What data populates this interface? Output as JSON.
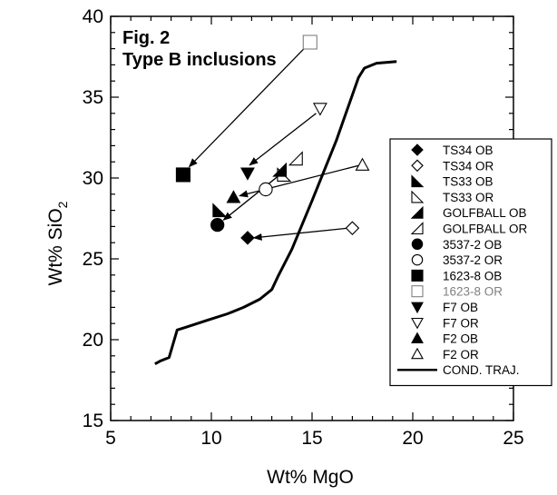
{
  "chart_data": {
    "type": "scatter",
    "title": "Fig. 2",
    "subtitle": "Type B inclusions",
    "xlabel": "Wt% MgO",
    "ylabel_main": "Wt% SiO",
    "ylabel_sub": "2",
    "xlim": [
      5,
      25
    ],
    "ylim": [
      15,
      40
    ],
    "xticks": [
      5,
      10,
      15,
      20,
      25
    ],
    "yticks": [
      15,
      20,
      25,
      30,
      35,
      40
    ],
    "grid": false,
    "legend_position": "right",
    "series": [
      {
        "name": "TS34 OB",
        "marker": "diamond",
        "filled": true,
        "color": "#000000",
        "points": [
          [
            11.8,
            26.3
          ]
        ]
      },
      {
        "name": "TS34 OR",
        "marker": "diamond",
        "filled": false,
        "color": "#000000",
        "points": [
          [
            17.0,
            26.9
          ]
        ]
      },
      {
        "name": "TS33 OB",
        "marker": "right-triangle",
        "filled": true,
        "color": "#000000",
        "points": [
          [
            10.4,
            28.0
          ]
        ]
      },
      {
        "name": "TS33 OR",
        "marker": "right-triangle",
        "filled": false,
        "color": "#000000",
        "points": [
          [
            13.6,
            30.2
          ]
        ]
      },
      {
        "name": "GOLFBALL OB",
        "marker": "left-triangle",
        "filled": true,
        "color": "#000000",
        "points": [
          [
            13.4,
            30.5
          ]
        ]
      },
      {
        "name": "GOLFBALL OR",
        "marker": "left-triangle",
        "filled": false,
        "color": "#000000",
        "points": [
          [
            14.2,
            31.2
          ]
        ]
      },
      {
        "name": "3537-2 OB",
        "marker": "circle",
        "filled": true,
        "color": "#000000",
        "points": [
          [
            10.3,
            27.1
          ]
        ]
      },
      {
        "name": "3537-2 OR",
        "marker": "circle",
        "filled": false,
        "color": "#000000",
        "points": [
          [
            12.7,
            29.3
          ]
        ]
      },
      {
        "name": "1623-8 OB",
        "marker": "square",
        "filled": true,
        "color": "#000000",
        "points": [
          [
            8.6,
            30.2
          ]
        ]
      },
      {
        "name": "1623-8 OR",
        "marker": "square",
        "filled": false,
        "color": "#808080",
        "points": [
          [
            14.9,
            38.4
          ]
        ]
      },
      {
        "name": "F7 OB",
        "marker": "triangle-down",
        "filled": true,
        "color": "#000000",
        "points": [
          [
            11.8,
            30.3
          ]
        ]
      },
      {
        "name": "F7 OR",
        "marker": "triangle-down",
        "filled": false,
        "color": "#000000",
        "points": [
          [
            15.4,
            34.3
          ]
        ]
      },
      {
        "name": "F2 OB",
        "marker": "triangle-up",
        "filled": true,
        "color": "#000000",
        "points": [
          [
            11.1,
            28.8
          ]
        ]
      },
      {
        "name": "F2 OR",
        "marker": "triangle-up",
        "filled": false,
        "color": "#000000",
        "points": [
          [
            17.5,
            30.8
          ]
        ]
      },
      {
        "name": "COND. TRAJ.",
        "marker": "line",
        "filled": false,
        "color": "#000000",
        "points": [
          [
            7.2,
            18.5
          ],
          [
            7.5,
            18.7
          ],
          [
            7.9,
            18.9
          ],
          [
            8.3,
            20.6
          ],
          [
            8.8,
            20.8
          ],
          [
            9.8,
            21.2
          ],
          [
            10.8,
            21.6
          ],
          [
            11.6,
            22.0
          ],
          [
            12.4,
            22.5
          ],
          [
            13.0,
            23.1
          ],
          [
            13.3,
            23.9
          ],
          [
            14.0,
            25.6
          ],
          [
            15.0,
            28.6
          ],
          [
            16.2,
            32.3
          ],
          [
            17.3,
            36.2
          ],
          [
            17.6,
            36.8
          ],
          [
            18.2,
            37.1
          ],
          [
            19.2,
            37.2
          ]
        ]
      }
    ],
    "arrows": [
      {
        "from": [
          14.6,
          38.0
        ],
        "to": [
          8.9,
          30.7
        ]
      },
      {
        "from": [
          15.2,
          34.0
        ],
        "to": [
          11.9,
          30.8
        ]
      },
      {
        "from": [
          17.4,
          30.8
        ],
        "to": [
          11.4,
          28.9
        ]
      },
      {
        "from": [
          13.4,
          30.2
        ],
        "to": [
          10.6,
          27.4
        ]
      },
      {
        "from": [
          16.8,
          26.9
        ],
        "to": [
          12.1,
          26.3
        ]
      }
    ]
  }
}
